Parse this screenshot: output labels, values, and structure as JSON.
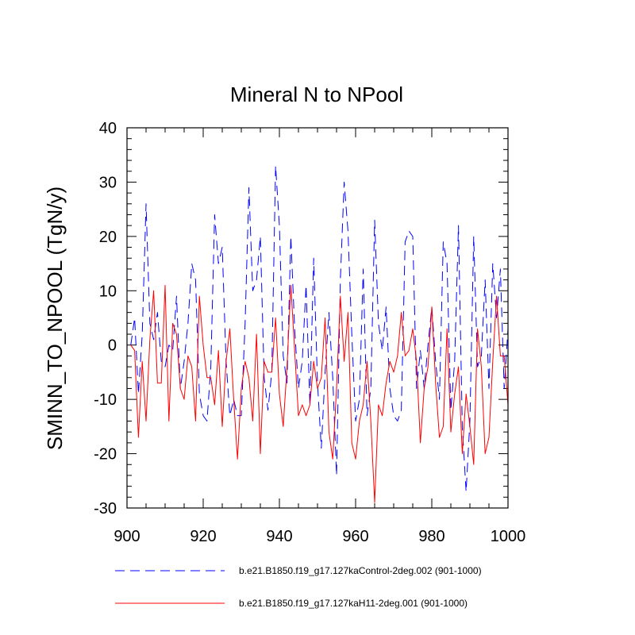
{
  "chart_data": {
    "type": "line",
    "title": "Mineral N to NPool",
    "xlabel": "",
    "ylabel": "SMINN_TO_NPOOL  (TgN/y)",
    "xlim": [
      900,
      1000
    ],
    "ylim": [
      -30,
      40
    ],
    "xticks": [
      900,
      920,
      940,
      960,
      980,
      1000
    ],
    "yticks": [
      -30,
      -20,
      -10,
      0,
      10,
      20,
      30,
      40
    ],
    "series": [
      {
        "name": "b.e21.B1850.f19_g17.127kaControl-2deg.002 (901-1000)",
        "color": "#0000ff",
        "style": "dashed",
        "x": [
          901,
          902,
          903,
          904,
          905,
          906,
          907,
          908,
          909,
          910,
          911,
          912,
          913,
          914,
          915,
          916,
          917,
          918,
          919,
          920,
          921,
          922,
          923,
          924,
          925,
          926,
          927,
          928,
          929,
          930,
          931,
          932,
          933,
          934,
          935,
          936,
          937,
          938,
          939,
          940,
          941,
          942,
          943,
          944,
          945,
          946,
          947,
          948,
          949,
          950,
          951,
          952,
          953,
          954,
          955,
          956,
          957,
          958,
          959,
          960,
          961,
          962,
          963,
          964,
          965,
          966,
          967,
          968,
          969,
          970,
          971,
          972,
          973,
          974,
          975,
          976,
          977,
          978,
          979,
          980,
          981,
          982,
          983,
          984,
          985,
          986,
          987,
          988,
          989,
          990,
          991,
          992,
          993,
          994,
          995,
          996,
          997,
          998,
          999,
          1000
        ],
        "values": [
          0,
          5,
          -9,
          2,
          26,
          4,
          1,
          6,
          -3,
          -4,
          0,
          -1,
          9,
          -8,
          -3,
          4,
          15,
          12,
          -9,
          -13,
          -14,
          -4,
          24,
          15,
          18,
          -3,
          -13,
          -10,
          -13,
          -13,
          4,
          29,
          10,
          12,
          20,
          -6,
          -12,
          -5,
          33,
          22,
          -2,
          -7,
          20,
          3,
          -8,
          -3,
          11,
          -11,
          16,
          -7,
          -19,
          -5,
          6,
          -6,
          -24,
          12,
          30,
          21,
          2,
          -14,
          -10,
          14,
          -13,
          -8,
          23,
          4,
          -1,
          7,
          -8,
          -13,
          -14,
          -12,
          19,
          21,
          20,
          -8,
          -1,
          -8,
          0,
          7,
          -3,
          -10,
          19,
          15,
          -12,
          -3,
          22,
          -15,
          -27,
          -14,
          20,
          -4,
          -2,
          12,
          -8,
          15,
          5,
          14,
          -8,
          3
        ]
      },
      {
        "name": "b.e21.B1850.f19_g17.127kaH11-2deg.001 (901-1000)",
        "color": "#ff0000",
        "style": "solid",
        "x": [
          901,
          902,
          903,
          904,
          905,
          906,
          907,
          908,
          909,
          910,
          911,
          912,
          913,
          914,
          915,
          916,
          917,
          918,
          919,
          920,
          921,
          922,
          923,
          924,
          925,
          926,
          927,
          928,
          929,
          930,
          931,
          932,
          933,
          934,
          935,
          936,
          937,
          938,
          939,
          940,
          941,
          942,
          943,
          944,
          945,
          946,
          947,
          948,
          949,
          950,
          951,
          952,
          953,
          954,
          955,
          956,
          957,
          958,
          959,
          960,
          961,
          962,
          963,
          964,
          965,
          966,
          967,
          968,
          969,
          970,
          971,
          972,
          973,
          974,
          975,
          976,
          977,
          978,
          979,
          980,
          981,
          982,
          983,
          984,
          985,
          986,
          987,
          988,
          989,
          990,
          991,
          992,
          993,
          994,
          995,
          996,
          997,
          998,
          999,
          1000
        ],
        "values": [
          0,
          -1,
          -17,
          -3,
          -14,
          1,
          10,
          -7,
          -7,
          11,
          -14,
          4,
          2,
          -8,
          -10,
          -2,
          -4,
          -14,
          9,
          0,
          -6,
          -6,
          -11,
          -1,
          -15,
          -3,
          3,
          -10,
          -21,
          -8,
          -3,
          -6,
          -14,
          2,
          -20,
          -3,
          -5,
          -5,
          5,
          -9,
          -15,
          -4,
          11,
          -1,
          -13,
          -11,
          -13,
          -11,
          -3,
          -8,
          -6,
          5,
          -16,
          -21,
          -8,
          9,
          -3,
          6,
          -18,
          -21,
          -14,
          -11,
          -3,
          -14,
          -29,
          -11,
          -13,
          -7,
          -3,
          -5,
          -2,
          6,
          -2,
          -1,
          3,
          -3,
          -18,
          -8,
          -4,
          7,
          -7,
          -17,
          -15,
          3,
          -16,
          -9,
          -4,
          -20,
          -9,
          -15,
          -22,
          3,
          -4,
          -20,
          -17,
          -3,
          9,
          -2,
          -2,
          -11
        ]
      }
    ]
  }
}
